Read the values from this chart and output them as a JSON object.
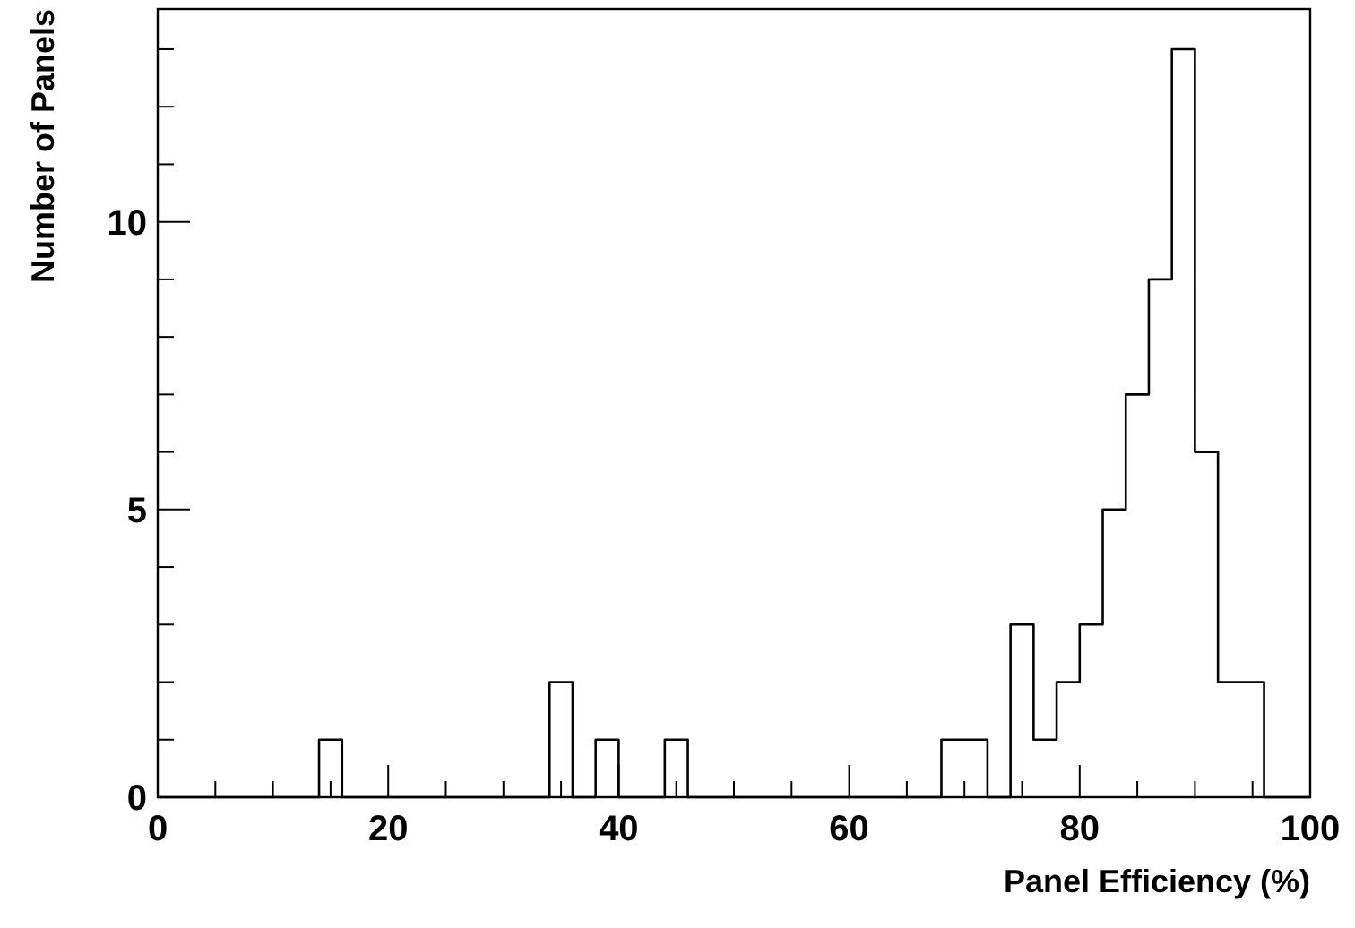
{
  "chart_data": {
    "type": "histogram",
    "xlabel": "Panel Efficiency (%)",
    "ylabel": "Number of Panels",
    "color": "#000000",
    "bins": [
      0,
      2,
      4,
      6,
      8,
      10,
      12,
      14,
      16,
      18,
      20,
      22,
      24,
      26,
      28,
      30,
      32,
      34,
      36,
      38,
      40,
      42,
      44,
      46,
      48,
      50,
      52,
      54,
      56,
      58,
      60,
      62,
      64,
      66,
      68,
      70,
      72,
      74,
      76,
      78,
      80,
      82,
      84,
      86,
      88,
      90,
      92,
      94,
      96,
      98,
      100
    ],
    "values": [
      0,
      0,
      0,
      0,
      0,
      0,
      0,
      1,
      0,
      0,
      0,
      0,
      0,
      0,
      0,
      0,
      0,
      2,
      0,
      1,
      0,
      0,
      1,
      0,
      0,
      0,
      0,
      0,
      0,
      0,
      0,
      0,
      0,
      0,
      1,
      1,
      0,
      3,
      1,
      2,
      3,
      5,
      7,
      9,
      13,
      6,
      2,
      2,
      0,
      0
    ],
    "xlim": [
      0,
      100
    ],
    "xticks": [
      0,
      {
        "value": 5,
        "label": null
      },
      {
        "value": 10,
        "label": null
      },
      {
        "value": 15,
        "label": null
      },
      20,
      {
        "value": 25,
        "label": null
      },
      {
        "value": 30,
        "label": null
      },
      {
        "value": 35,
        "label": null
      },
      40,
      {
        "value": 45,
        "label": null
      },
      {
        "value": 50,
        "label": null
      },
      {
        "value": 55,
        "label": null
      },
      60,
      {
        "value": 65,
        "label": null
      },
      {
        "value": 70,
        "label": null
      },
      {
        "value": 75,
        "label": null
      },
      80,
      {
        "value": 85,
        "label": null
      },
      {
        "value": 90,
        "label": null
      },
      {
        "value": 95,
        "label": null
      },
      100
    ],
    "ylim": [
      0,
      13.7
    ],
    "yticks": [
      0,
      {
        "value": 1,
        "label": null
      },
      {
        "value": 2,
        "label": null
      },
      {
        "value": 3,
        "label": null
      },
      {
        "value": 4,
        "label": null
      },
      5,
      {
        "value": 6,
        "label": null
      },
      {
        "value": 7,
        "label": null
      },
      {
        "value": 8,
        "label": null
      },
      {
        "value": 9,
        "label": null
      },
      10,
      {
        "value": 11,
        "label": null
      },
      {
        "value": 12,
        "label": null
      },
      {
        "value": 13,
        "label": null
      }
    ],
    "grid": false
  }
}
